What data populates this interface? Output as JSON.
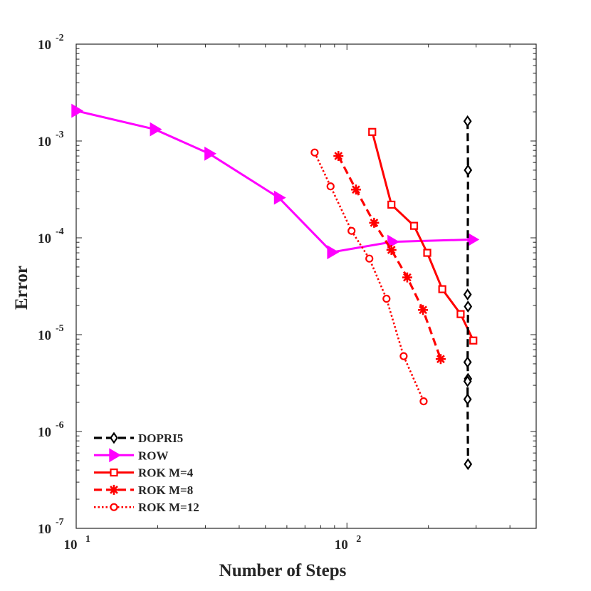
{
  "chart_data": {
    "type": "line",
    "title": "",
    "xlabel": "Number of Steps",
    "ylabel": "Error",
    "xscale": "log",
    "yscale": "log",
    "xlim": [
      10,
      500
    ],
    "ylim": [
      1e-07,
      0.01
    ],
    "grid": false,
    "legend_position": "bottom-left",
    "x_ticks": [
      {
        "value": 10,
        "base": "10",
        "exp": "1"
      },
      {
        "value": 100,
        "base": "10",
        "exp": "2"
      }
    ],
    "y_ticks": [
      {
        "value": 0.01,
        "base": "10",
        "exp": "-2"
      },
      {
        "value": 0.001,
        "base": "10",
        "exp": "-3"
      },
      {
        "value": 0.0001,
        "base": "10",
        "exp": "-4"
      },
      {
        "value": 1e-05,
        "base": "10",
        "exp": "-5"
      },
      {
        "value": 1e-06,
        "base": "10",
        "exp": "-6"
      },
      {
        "value": 1e-07,
        "base": "10",
        "exp": "-7"
      }
    ],
    "series": [
      {
        "name": "DOPRI5",
        "color": "#000000",
        "dash": "dashed",
        "marker": "diamond",
        "x": [
          279,
          280,
          279,
          280,
          279,
          280,
          279,
          279,
          280
        ],
        "y": [
          0.0016,
          0.0005,
          2.6e-05,
          1.95e-05,
          5.2e-06,
          3.5e-06,
          3.3e-06,
          2.15e-06,
          4.6e-07
        ]
      },
      {
        "name": "ROW",
        "color": "#ff00ff",
        "dash": "solid",
        "marker": "triangle-right",
        "x": [
          10,
          19.5,
          31,
          56,
          88,
          147,
          290
        ],
        "y": [
          0.00205,
          0.00132,
          0.00074,
          0.00026,
          7.1e-05,
          9.1e-05,
          9.6e-05
        ]
      },
      {
        "name": "ROK M=4",
        "color": "#ff0000",
        "dash": "solid",
        "marker": "square",
        "x": [
          124,
          146,
          177,
          198,
          225,
          263,
          293
        ],
        "y": [
          0.00124,
          0.00022,
          0.000133,
          7e-05,
          2.95e-05,
          1.63e-05,
          8.7e-06
        ]
      },
      {
        "name": "ROK M=8",
        "color": "#ff0000",
        "dash": "dashed",
        "marker": "asterisk",
        "x": [
          93,
          108,
          126,
          146,
          167,
          191,
          222
        ],
        "y": [
          0.0007,
          0.000315,
          0.000143,
          7.5e-05,
          3.9e-05,
          1.8e-05,
          5.6e-06
        ]
      },
      {
        "name": "ROK M=12",
        "color": "#ff0000",
        "dash": "dotted",
        "marker": "circle",
        "x": [
          76,
          87,
          104,
          121,
          140,
          162,
          192
        ],
        "y": [
          0.00076,
          0.00034,
          0.000118,
          6.1e-05,
          2.35e-05,
          6e-06,
          2.05e-06
        ]
      }
    ]
  }
}
